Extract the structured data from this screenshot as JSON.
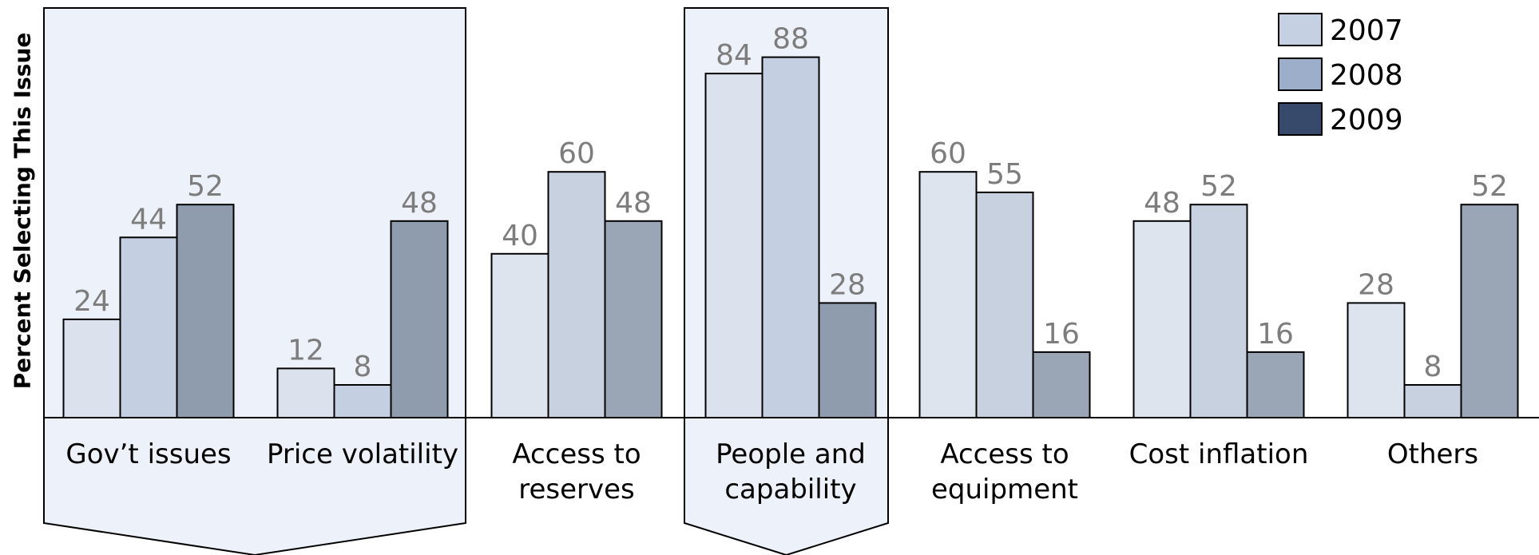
{
  "chart_data": {
    "type": "bar",
    "ylabel": "Percent Selecting This Issue",
    "categories": [
      [
        "Gov’t issues"
      ],
      [
        "Price volatility"
      ],
      [
        "Access to",
        "reserves"
      ],
      [
        "People and",
        "capability"
      ],
      [
        "Access to",
        "equipment"
      ],
      [
        "Cost inflation"
      ],
      [
        "Others"
      ]
    ],
    "series": [
      {
        "name": "2007",
        "values": [
          24,
          12,
          40,
          84,
          60,
          48,
          28
        ]
      },
      {
        "name": "2008",
        "values": [
          44,
          8,
          60,
          88,
          55,
          52,
          8
        ]
      },
      {
        "name": "2009",
        "values": [
          52,
          48,
          48,
          28,
          16,
          16,
          52
        ]
      }
    ],
    "ylim": [
      0,
      100
    ],
    "grid": false,
    "legend_position": "top-right",
    "highlighted_groups": [
      [
        0,
        1
      ],
      [
        3,
        3
      ]
    ],
    "colors": {
      "legend": [
        "#c5d0e2",
        "#9daecb",
        "#374a6b"
      ],
      "bars_normal": [
        "#dde4ee",
        "#c8d1e0",
        "#9aa6b6"
      ],
      "bars_highlight": [
        "#dbe2ee",
        "#c4cfe1",
        "#8f9cad"
      ],
      "highlight_bg": "#edf2fa",
      "value_text": "#7d7d7d"
    }
  }
}
